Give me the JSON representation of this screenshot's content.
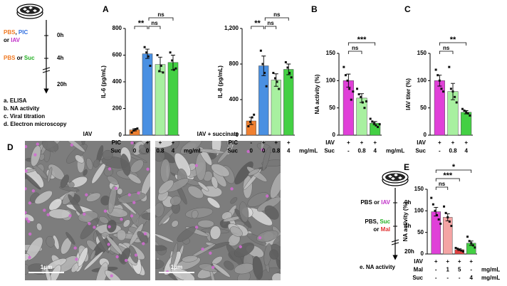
{
  "panel_labels": [
    "A",
    "B",
    "C",
    "D",
    "E"
  ],
  "protocol_top": {
    "treatment_0": [
      [
        {
          "text": "PBS",
          "color": "#f07820"
        },
        {
          "text": ", "
        },
        {
          "text": "PIC",
          "color": "#2f6fe0"
        }
      ],
      [
        {
          "text": "or "
        },
        {
          "text": "IAV",
          "color": "#c030c8"
        }
      ]
    ],
    "time_0": "0h",
    "treatment_4": [
      [
        {
          "text": "PBS",
          "color": "#f07820"
        },
        {
          "text": " or "
        },
        {
          "text": "Suc",
          "color": "#22b022"
        }
      ]
    ],
    "time_4": "4h",
    "time_20": "20h",
    "readouts": [
      "a. ELISA",
      "b. NA activity",
      "c. Viral titration",
      "d. Electron microscopy"
    ]
  },
  "protocol_bottom": {
    "treatment_0": [
      [
        {
          "text": "PBS or "
        },
        {
          "text": "IAV",
          "color": "#c030c8"
        }
      ]
    ],
    "time_0": "0h",
    "treatment_4": [
      [
        {
          "text": "PBS, "
        },
        {
          "text": "Suc",
          "color": "#22b022"
        }
      ],
      [
        {
          "text": "or "
        },
        {
          "text": "Mal",
          "color": "#e03030"
        }
      ]
    ],
    "time_4": "4h",
    "time_20": "20h",
    "readouts": [
      "e. NA activity"
    ]
  },
  "micrographs": [
    {
      "title": "IAV",
      "scale_label": "1μm"
    },
    {
      "title": "IAV + succinate",
      "scale_label": "1μm"
    }
  ],
  "chart_data": [
    {
      "type": "bar",
      "y_label": "IL-6 (pg/mL)",
      "ylim": [
        0,
        800
      ],
      "yticks": [
        0,
        200,
        400,
        600,
        800
      ],
      "values": [
        40,
        610,
        530,
        545
      ],
      "errors": [
        8,
        35,
        55,
        55
      ],
      "colors": [
        "#f08030",
        "#4a90e2",
        "#a8f0a0",
        "#44d044"
      ],
      "points": [
        [
          20,
          35,
          45,
          50
        ],
        [
          660,
          620,
          590,
          520
        ],
        [
          600,
          480,
          520,
          470
        ],
        [
          620,
          560,
          490,
          500
        ]
      ],
      "conditions": [
        {
          "name": "PIC",
          "values": [
            "-",
            "+",
            "+",
            "+"
          ]
        },
        {
          "name": "Suc",
          "values": [
            "0",
            "0",
            "0.8",
            "4"
          ],
          "unit": "mg/mL"
        }
      ],
      "significance": [
        "**",
        "ns",
        "ns"
      ]
    },
    {
      "type": "bar",
      "y_label": "IL-8 (pg/mL)",
      "ylim": [
        0,
        1200
      ],
      "yticks": [
        0,
        400,
        800,
        {
          "value": 1200,
          "label": "1,200"
        }
      ],
      "values": [
        160,
        780,
        620,
        740
      ],
      "errors": [
        40,
        110,
        70,
        60
      ],
      "colors": [
        "#f08030",
        "#4a90e2",
        "#a8f0a0",
        "#44d044"
      ],
      "points": [
        [
          100,
          150,
          200,
          230
        ],
        [
          950,
          800,
          700,
          550
        ],
        [
          700,
          640,
          600,
          520
        ],
        [
          820,
          760,
          700,
          650
        ]
      ],
      "conditions": [
        {
          "name": "PIC",
          "values": [
            "-",
            "+",
            "+",
            "+"
          ]
        },
        {
          "name": "Suc",
          "values": [
            "0",
            "0",
            "0.8",
            "4"
          ],
          "unit": "mg/mL"
        }
      ],
      "significance": [
        "**",
        "ns",
        "ns"
      ]
    },
    {
      "type": "bar",
      "y_label": "NA activity (%)",
      "ylim": [
        0,
        150
      ],
      "yticks": [
        0,
        50,
        100,
        150
      ],
      "values": [
        100,
        68,
        22
      ],
      "errors": [
        12,
        8,
        3
      ],
      "colors": [
        "#e040d8",
        "#a8f0a0",
        "#44d044"
      ],
      "points": [
        [
          125,
          110,
          100,
          85,
          65,
          80
        ],
        [
          85,
          75,
          70,
          60,
          50,
          62
        ],
        [
          30,
          25,
          22,
          18,
          15,
          20
        ]
      ],
      "conditions": [
        {
          "name": "IAV",
          "values": [
            "+",
            "+",
            "+"
          ]
        },
        {
          "name": "Suc",
          "values": [
            "-",
            "0.8",
            "4"
          ],
          "unit": "mg/mL"
        }
      ],
      "significance": [
        "ns",
        "***"
      ]
    },
    {
      "type": "bar",
      "y_label": "IAV titer (%)",
      "ylim": [
        0,
        150
      ],
      "yticks": [
        0,
        50,
        100,
        150
      ],
      "values": [
        100,
        80,
        42
      ],
      "errors": [
        10,
        15,
        3
      ],
      "colors": [
        "#e040d8",
        "#a8f0a0",
        "#44d044"
      ],
      "points": [
        [
          120,
          110,
          100,
          85,
          80
        ],
        [
          125,
          85,
          80,
          70,
          60
        ],
        [
          48,
          45,
          42,
          40,
          36
        ]
      ],
      "conditions": [
        {
          "name": "IAV",
          "values": [
            "+",
            "+",
            "+"
          ]
        },
        {
          "name": "Suc",
          "values": [
            "-",
            "0.8",
            "4"
          ]
        }
      ],
      "significance": [
        "ns",
        "**"
      ]
    },
    {
      "type": "bar",
      "y_label": "NA activity (%)",
      "ylim": [
        0,
        150
      ],
      "yticks": [
        0,
        50,
        100,
        150
      ],
      "values": [
        98,
        85,
        10,
        25
      ],
      "errors": [
        10,
        8,
        2,
        5
      ],
      "colors": [
        "#e040d8",
        "#f4a4a4",
        "#e04040",
        "#44d044"
      ],
      "points": [
        [
          130,
          115,
          100,
          90,
          80,
          70
        ],
        [
          110,
          95,
          85,
          75,
          65
        ],
        [
          14,
          12,
          10,
          8,
          6
        ],
        [
          40,
          30,
          25,
          20,
          15
        ]
      ],
      "conditions": [
        {
          "name": "IAV",
          "values": [
            "+",
            "+",
            "+",
            "+"
          ]
        },
        {
          "name": "Mal",
          "values": [
            "-",
            "1",
            "5",
            "-"
          ],
          "unit": "mg/mL"
        },
        {
          "name": "Suc",
          "values": [
            "-",
            "-",
            "-",
            "4"
          ],
          "unit": "mg/mL"
        }
      ],
      "significance": [
        "ns",
        "***",
        "*"
      ]
    }
  ]
}
